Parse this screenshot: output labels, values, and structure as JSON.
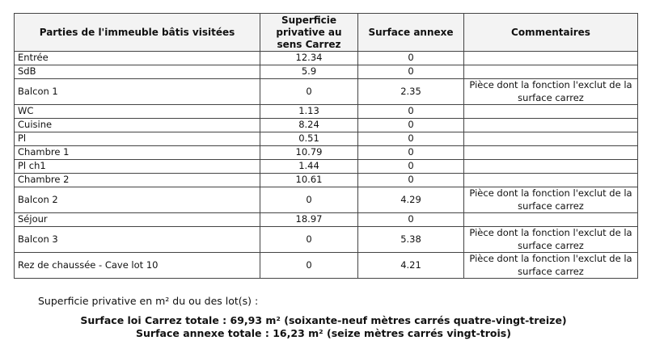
{
  "table": {
    "headers": [
      "Parties de l'immeuble bâtis visitées",
      "Superficie privative au sens Carrez",
      "Surface annexe",
      "Commentaires"
    ],
    "rows": [
      {
        "room": "Entrée",
        "carrez": "12.34",
        "annexe": "0",
        "comment": ""
      },
      {
        "room": "SdB",
        "carrez": "5.9",
        "annexe": "0",
        "comment": ""
      },
      {
        "room": "Balcon 1",
        "carrez": "0",
        "annexe": "2.35",
        "comment": "Pièce dont la fonction l'exclut de la surface carrez"
      },
      {
        "room": "WC",
        "carrez": "1.13",
        "annexe": "0",
        "comment": ""
      },
      {
        "room": "Cuisine",
        "carrez": "8.24",
        "annexe": "0",
        "comment": ""
      },
      {
        "room": "Pl",
        "carrez": "0.51",
        "annexe": "0",
        "comment": ""
      },
      {
        "room": "Chambre 1",
        "carrez": "10.79",
        "annexe": "0",
        "comment": ""
      },
      {
        "room": "Pl ch1",
        "carrez": "1.44",
        "annexe": "0",
        "comment": ""
      },
      {
        "room": "Chambre 2",
        "carrez": "10.61",
        "annexe": "0",
        "comment": ""
      },
      {
        "room": "Balcon 2",
        "carrez": "0",
        "annexe": "4.29",
        "comment": "Pièce dont la fonction l'exclut de la surface carrez"
      },
      {
        "room": "Séjour",
        "carrez": "18.97",
        "annexe": "0",
        "comment": ""
      },
      {
        "room": "Balcon 3",
        "carrez": "0",
        "annexe": "5.38",
        "comment": "Pièce dont la fonction l'exclut de la surface carrez"
      },
      {
        "room": "Rez de chaussée - Cave lot 10",
        "carrez": "0",
        "annexe": "4.21",
        "comment": "Pièce dont la fonction l'exclut de la surface carrez"
      }
    ]
  },
  "summary": {
    "intro": "Superficie privative en m² du ou des lot(s) :",
    "carrez_total": "Surface loi Carrez totale : 69,93 m² (soixante-neuf mètres carrés quatre-vingt-treize)",
    "annexe_total": "Surface annexe totale : 16,23 m² (seize mètres carrés vingt-trois)"
  }
}
